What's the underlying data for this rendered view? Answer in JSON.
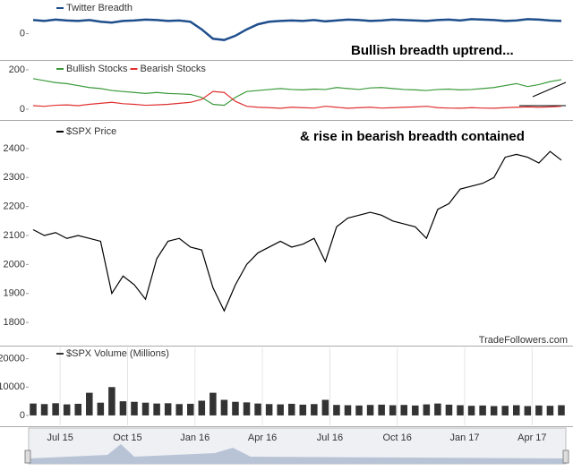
{
  "chart_data": [
    {
      "type": "line",
      "annotation": "Bullish breadth uptrend...",
      "x": [
        4.8,
        5.3,
        5.8,
        6.3,
        6.8,
        7.3,
        7.8,
        8.3,
        8.8,
        9.3,
        9.8,
        10.3,
        10.8,
        11.3,
        11.8,
        12.3,
        12.8,
        13.3,
        13.8,
        14.3,
        14.8,
        15.3,
        15.8,
        16.3,
        16.8,
        17.3,
        17.8,
        18.3,
        18.8,
        19.3,
        19.8,
        20.3,
        20.8,
        21.3,
        21.8,
        22.3,
        22.8,
        23.3,
        23.8,
        24.3,
        24.8,
        25.3,
        25.8,
        26.3,
        26.8,
        27.3,
        27.8,
        28.3
      ],
      "xlim": [
        4.6,
        28.5
      ],
      "ylim": [
        -60,
        75
      ],
      "yticks": [
        0
      ],
      "series": [
        {
          "name": "Twitter Breadth",
          "color": "#1f4e8c",
          "values": [
            32,
            30,
            33,
            31,
            30,
            32,
            28,
            26,
            30,
            31,
            33,
            32,
            30,
            31,
            28,
            10,
            -12,
            -15,
            -5,
            10,
            22,
            28,
            30,
            31,
            30,
            32,
            29,
            31,
            33,
            32,
            30,
            31,
            33,
            32,
            31,
            30,
            32,
            33,
            31,
            34,
            33,
            32,
            30,
            31,
            34,
            33,
            31,
            30
          ]
        }
      ]
    },
    {
      "type": "line",
      "x": [
        4.8,
        5.3,
        5.8,
        6.3,
        6.8,
        7.3,
        7.8,
        8.3,
        8.8,
        9.3,
        9.8,
        10.3,
        10.8,
        11.3,
        11.8,
        12.3,
        12.8,
        13.3,
        13.8,
        14.3,
        14.8,
        15.3,
        15.8,
        16.3,
        16.8,
        17.3,
        17.8,
        18.3,
        18.8,
        19.3,
        19.8,
        20.3,
        20.8,
        21.3,
        21.8,
        22.3,
        22.8,
        23.3,
        23.8,
        24.3,
        24.8,
        25.3,
        25.8,
        26.3,
        26.8,
        27.3,
        27.8,
        28.3
      ],
      "xlim": [
        4.6,
        28.5
      ],
      "ylim": [
        -50,
        236
      ],
      "yticks": [
        0,
        200
      ],
      "series": [
        {
          "name": "Bullish Stocks",
          "color": "#3a9a3a",
          "values": [
            155,
            145,
            135,
            130,
            120,
            110,
            105,
            95,
            90,
            85,
            80,
            85,
            80,
            78,
            75,
            60,
            25,
            20,
            60,
            90,
            95,
            100,
            105,
            100,
            98,
            102,
            100,
            110,
            105,
            100,
            108,
            110,
            105,
            100,
            98,
            95,
            100,
            102,
            98,
            100,
            105,
            110,
            120,
            130,
            115,
            125,
            140,
            150
          ]
        },
        {
          "name": "Bearish Stocks",
          "color": "#e03030",
          "values": [
            18,
            15,
            20,
            22,
            18,
            25,
            30,
            35,
            28,
            25,
            20,
            22,
            25,
            30,
            35,
            50,
            90,
            85,
            40,
            15,
            10,
            8,
            5,
            10,
            8,
            6,
            15,
            10,
            5,
            8,
            10,
            6,
            8,
            10,
            12,
            15,
            8,
            6,
            5,
            8,
            6,
            5,
            8,
            10,
            12,
            10,
            12,
            15
          ]
        }
      ]
    },
    {
      "type": "line",
      "annotation": "& rise in bearish breadth contained",
      "credit": "TradeFollowers.com",
      "x": [
        4.8,
        5.3,
        5.8,
        6.3,
        6.8,
        7.3,
        7.8,
        8.3,
        8.8,
        9.3,
        9.8,
        10.3,
        10.8,
        11.3,
        11.8,
        12.3,
        12.8,
        13.3,
        13.8,
        14.3,
        14.8,
        15.3,
        15.8,
        16.3,
        16.8,
        17.3,
        17.8,
        18.3,
        18.8,
        19.3,
        19.8,
        20.3,
        20.8,
        21.3,
        21.8,
        22.3,
        22.8,
        23.3,
        23.8,
        24.3,
        24.8,
        25.3,
        25.8,
        26.3,
        26.8,
        27.3,
        27.8,
        28.3
      ],
      "xlim": [
        4.6,
        28.5
      ],
      "ylim": [
        1723,
        2480
      ],
      "yticks": [
        1800,
        1900,
        2000,
        2100,
        2200,
        2300,
        2400
      ],
      "series": [
        {
          "name": "$SPX Price",
          "color": "#000000",
          "values": [
            2120,
            2100,
            2110,
            2090,
            2100,
            2090,
            2080,
            1900,
            1960,
            1930,
            1880,
            2020,
            2080,
            2090,
            2060,
            2050,
            1920,
            1840,
            1930,
            2000,
            2040,
            2060,
            2080,
            2060,
            2070,
            2090,
            2010,
            2130,
            2160,
            2170,
            2180,
            2170,
            2150,
            2140,
            2130,
            2090,
            2190,
            2210,
            2260,
            2270,
            2280,
            2300,
            2370,
            2380,
            2370,
            2350,
            2390,
            2360
          ]
        }
      ]
    },
    {
      "type": "bar",
      "x": [
        4.8,
        5.3,
        5.8,
        6.3,
        6.8,
        7.3,
        7.8,
        8.3,
        8.8,
        9.3,
        9.8,
        10.3,
        10.8,
        11.3,
        11.8,
        12.3,
        12.8,
        13.3,
        13.8,
        14.3,
        14.8,
        15.3,
        15.8,
        16.3,
        16.8,
        17.3,
        17.8,
        18.3,
        18.8,
        19.3,
        19.8,
        20.3,
        20.8,
        21.3,
        21.8,
        22.3,
        22.8,
        23.3,
        23.8,
        24.3,
        24.8,
        25.3,
        25.8,
        26.3,
        26.8,
        27.3,
        27.8,
        28.3
      ],
      "xlim": [
        4.6,
        28.5
      ],
      "ylim": [
        -3500,
        24000
      ],
      "yticks": [
        0,
        10000,
        20000
      ],
      "xticks": [
        {
          "value": 6,
          "label": "Jul 15"
        },
        {
          "value": 9,
          "label": "Oct 15"
        },
        {
          "value": 12,
          "label": "Jan 16"
        },
        {
          "value": 15,
          "label": "Apr 16"
        },
        {
          "value": 18,
          "label": "Jul 16"
        },
        {
          "value": 21,
          "label": "Oct 16"
        },
        {
          "value": 24,
          "label": "Jan 17"
        },
        {
          "value": 27,
          "label": "Apr 17"
        }
      ],
      "series": [
        {
          "name": "$SPX Volume (Millions)",
          "color": "#333333",
          "values": [
            4200,
            4000,
            4300,
            3900,
            4100,
            8000,
            4500,
            10000,
            5000,
            4800,
            4500,
            4200,
            4300,
            4000,
            4100,
            5200,
            8000,
            5500,
            4800,
            4600,
            4200,
            4000,
            3900,
            4100,
            3800,
            4000,
            5500,
            3700,
            3600,
            3500,
            3700,
            3800,
            3600,
            3700,
            3500,
            3900,
            4200,
            3800,
            3600,
            3400,
            3500,
            3300,
            3400,
            3600,
            3300,
            3500,
            3400,
            3600
          ]
        }
      ]
    }
  ]
}
